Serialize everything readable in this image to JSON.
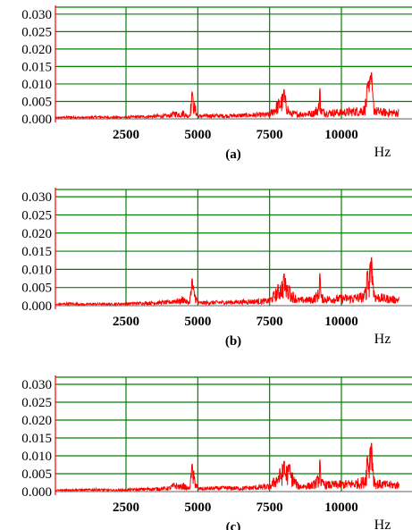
{
  "colors": {
    "grid": "#008000",
    "spectrum": "#ff0000",
    "y_axis": "#ff0000",
    "baseline": "#808080",
    "text": "#000000"
  },
  "chart_data": [
    {
      "type": "line",
      "panel_label": "(a)",
      "xlabel": "Hz",
      "x_ticks": [
        2500,
        5000,
        7500,
        10000
      ],
      "y_ticks": [
        "0.000",
        "0.005",
        "0.010",
        "0.015",
        "0.020",
        "0.025",
        "0.030"
      ],
      "xlim": [
        0,
        12000
      ],
      "ylim": [
        0,
        0.032
      ],
      "grid": true,
      "series": [
        {
          "x": [
            0,
            500,
            1000,
            1500,
            2000,
            2500,
            3000,
            3500,
            4000,
            4200,
            4400,
            4500,
            4600,
            4700,
            4800,
            5000,
            5500,
            6000,
            6500,
            7000,
            7500,
            8000,
            8200,
            8500,
            9000,
            9200,
            9250,
            9300,
            9500,
            10000,
            10500,
            10800,
            10900,
            11000,
            11050,
            11100,
            11200,
            11500,
            12000
          ],
          "y": [
            0.0005,
            0.0008,
            0.0006,
            0.0009,
            0.0007,
            0.0008,
            0.001,
            0.0012,
            0.0014,
            0.0025,
            0.0018,
            0.0028,
            0.0015,
            0.0013,
            0.0078,
            0.0012,
            0.0015,
            0.0014,
            0.0016,
            0.0018,
            0.002,
            0.0085,
            0.0025,
            0.0022,
            0.0025,
            0.0045,
            0.009,
            0.0035,
            0.0028,
            0.003,
            0.0035,
            0.0042,
            0.01,
            0.012,
            0.0135,
            0.006,
            0.0035,
            0.003,
            0.0028
          ]
        }
      ]
    },
    {
      "type": "line",
      "panel_label": "(b)",
      "xlabel": "Hz",
      "x_ticks": [
        2500,
        5000,
        7500,
        10000
      ],
      "y_ticks": [
        "0.000",
        "0.005",
        "0.010",
        "0.015",
        "0.020",
        "0.025",
        "0.030"
      ],
      "xlim": [
        0,
        12000
      ],
      "ylim": [
        0,
        0.032
      ],
      "grid": true,
      "series": [
        {
          "x": [
            0,
            500,
            1000,
            1500,
            2000,
            2500,
            3000,
            3500,
            4000,
            4200,
            4400,
            4500,
            4600,
            4700,
            4800,
            5000,
            5500,
            6000,
            6500,
            7000,
            7500,
            8000,
            8200,
            8500,
            9000,
            9200,
            9250,
            9300,
            9500,
            10000,
            10500,
            10800,
            10900,
            11000,
            11050,
            11100,
            11200,
            11500,
            12000
          ],
          "y": [
            0.0005,
            0.0009,
            0.0006,
            0.0008,
            0.0007,
            0.0009,
            0.0011,
            0.0013,
            0.0015,
            0.0022,
            0.0019,
            0.003,
            0.0016,
            0.0014,
            0.0075,
            0.0012,
            0.0014,
            0.0015,
            0.0017,
            0.0019,
            0.0021,
            0.0088,
            0.0052,
            0.0024,
            0.0026,
            0.0048,
            0.0092,
            0.0033,
            0.0029,
            0.0031,
            0.0034,
            0.004,
            0.0095,
            0.0115,
            0.0135,
            0.0065,
            0.0038,
            0.0032,
            0.0026
          ]
        }
      ]
    },
    {
      "type": "line",
      "panel_label": "(c)",
      "xlabel": "Hz",
      "x_ticks": [
        2500,
        5000,
        7500,
        10000
      ],
      "y_ticks": [
        "0.000",
        "0.005",
        "0.010",
        "0.015",
        "0.020",
        "0.025",
        "0.030"
      ],
      "xlim": [
        0,
        12000
      ],
      "ylim": [
        0,
        0.032
      ],
      "grid": true,
      "series": [
        {
          "x": [
            0,
            500,
            1000,
            1500,
            2000,
            2500,
            3000,
            3500,
            4000,
            4200,
            4400,
            4500,
            4600,
            4700,
            4800,
            5000,
            5500,
            6000,
            6500,
            7000,
            7500,
            8000,
            8200,
            8500,
            9000,
            9200,
            9250,
            9300,
            9500,
            10000,
            10500,
            10800,
            10900,
            11000,
            11050,
            11100,
            11200,
            11500,
            12000
          ],
          "y": [
            0.0005,
            0.0008,
            0.0007,
            0.0009,
            0.0006,
            0.0008,
            0.001,
            0.0012,
            0.0015,
            0.0028,
            0.002,
            0.0026,
            0.0016,
            0.0014,
            0.0078,
            0.0013,
            0.0014,
            0.0016,
            0.0015,
            0.0018,
            0.0022,
            0.0085,
            0.0075,
            0.0023,
            0.0027,
            0.005,
            0.0092,
            0.0036,
            0.003,
            0.0032,
            0.0036,
            0.0044,
            0.0098,
            0.012,
            0.0138,
            0.0062,
            0.0036,
            0.0031,
            0.0029
          ]
        }
      ]
    }
  ]
}
